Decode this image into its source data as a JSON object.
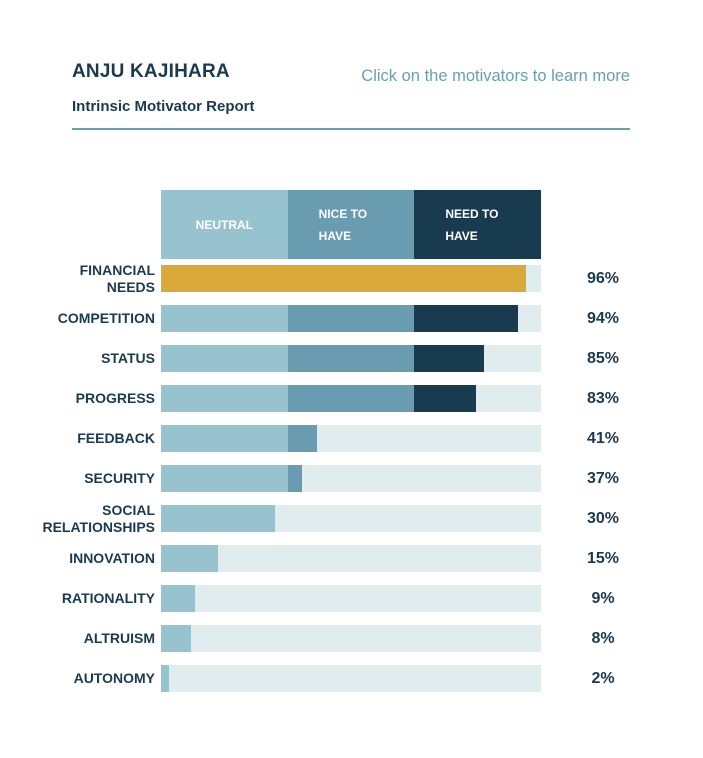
{
  "header": {
    "name": "ANJU KAJIHARA",
    "subtitle": "Intrinsic Motivator Report",
    "hint": "Click on the motivators to learn more"
  },
  "legend": {
    "neutral": "NEUTRAL",
    "nice_line1": "NICE TO",
    "nice_line2": "HAVE",
    "need_line1": "NEED TO",
    "need_line2": "HAVE"
  },
  "colors": {
    "neutral": "#96c3ce",
    "nice_to_have": "#699bb1",
    "need_to_have": "#193b4f",
    "highlight": "#d9aa3a",
    "track": "#e1ecef",
    "text": "#1a3a4f",
    "accent": "#6a9eb2"
  },
  "motivators": [
    {
      "label": "FINANCIAL NEEDS",
      "value": 96,
      "pct": "96%",
      "highlighted": true
    },
    {
      "label": "COMPETITION",
      "value": 94,
      "pct": "94%"
    },
    {
      "label": "STATUS",
      "value": 85,
      "pct": "85%"
    },
    {
      "label": "PROGRESS",
      "value": 83,
      "pct": "83%"
    },
    {
      "label": "FEEDBACK",
      "value": 41,
      "pct": "41%"
    },
    {
      "label": "SECURITY",
      "value": 37,
      "pct": "37%"
    },
    {
      "label": "SOCIAL RELATIONSHIPS",
      "value": 30,
      "pct": "30%"
    },
    {
      "label": "INNOVATION",
      "value": 15,
      "pct": "15%"
    },
    {
      "label": "RATIONALITY",
      "value": 9,
      "pct": "9%"
    },
    {
      "label": "ALTRUISM",
      "value": 8,
      "pct": "8%"
    },
    {
      "label": "AUTONOMY",
      "value": 2,
      "pct": "2%"
    }
  ],
  "chart_data": {
    "type": "bar",
    "orientation": "horizontal",
    "title": "Intrinsic Motivator Report",
    "subtitle": "ANJU KAJIHARA",
    "categories": [
      "FINANCIAL NEEDS",
      "COMPETITION",
      "STATUS",
      "PROGRESS",
      "FEEDBACK",
      "SECURITY",
      "SOCIAL RELATIONSHIPS",
      "INNOVATION",
      "RATIONALITY",
      "ALTRUISM",
      "AUTONOMY"
    ],
    "values": [
      96,
      94,
      85,
      83,
      41,
      37,
      30,
      15,
      9,
      8,
      2
    ],
    "xlim": [
      0,
      100
    ],
    "bands": [
      {
        "name": "NEUTRAL",
        "range": [
          0,
          33.3
        ]
      },
      {
        "name": "NICE TO HAVE",
        "range": [
          33.3,
          66.7
        ]
      },
      {
        "name": "NEED TO HAVE",
        "range": [
          66.7,
          100
        ]
      }
    ],
    "legend_position": "top",
    "highlighted_category": "FINANCIAL NEEDS",
    "grid": false
  }
}
